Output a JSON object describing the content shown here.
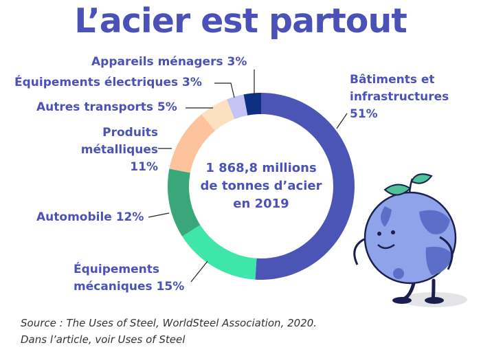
{
  "title": "L’acier est partout",
  "center_text": {
    "line1": "1 868,8 millions",
    "line2": "de tonnes d’acier",
    "line3": "en 2019"
  },
  "source": {
    "line1": "Source : The Uses of Steel, WorldSteel Association, 2020.",
    "line2": "Dans l’article, voir Uses of Steel"
  },
  "chart_data": {
    "type": "pie",
    "style": "donut",
    "total_label": "1 868,8 millions de tonnes d’acier en 2019",
    "slices": [
      {
        "label": "Bâtiments et infrastructures",
        "value": 51,
        "display": "51%",
        "color": "#4b55b6"
      },
      {
        "label": "Équipements mécaniques",
        "value": 15,
        "display": "15%",
        "color": "#3ee6aa"
      },
      {
        "label": "Automobile",
        "value": 12,
        "display": "12%",
        "color": "#3aa77a"
      },
      {
        "label": "Produits métalliques",
        "value": 11,
        "display": "11%",
        "color": "#fdc39d"
      },
      {
        "label": "Autres transports",
        "value": 5,
        "display": "5%",
        "color": "#fde0c0"
      },
      {
        "label": "Équipements électriques",
        "value": 3,
        "display": "3%",
        "color": "#c4c3f5"
      },
      {
        "label": "Appareils ménagers",
        "value": 3,
        "display": "3%",
        "color": "#0f2f82"
      }
    ]
  },
  "labels": {
    "batiments": [
      "Bâtiments et",
      "infrastructures",
      "51%"
    ],
    "equip_meca": [
      "Équipements",
      "mécaniques 15%"
    ],
    "automobile": "Automobile 12%",
    "produits": [
      "Produits",
      "métalliques",
      "11%"
    ],
    "autres": "Autres transports 5%",
    "equip_elec": "Équipements électriques 3%",
    "appareils": "Appareils ménagers 3%"
  },
  "colors": {
    "accent": "#4a52b8",
    "mascot_body": "#8fa3ea",
    "mascot_spots": "#5b6fc8",
    "leaf": "#4fc29a"
  }
}
